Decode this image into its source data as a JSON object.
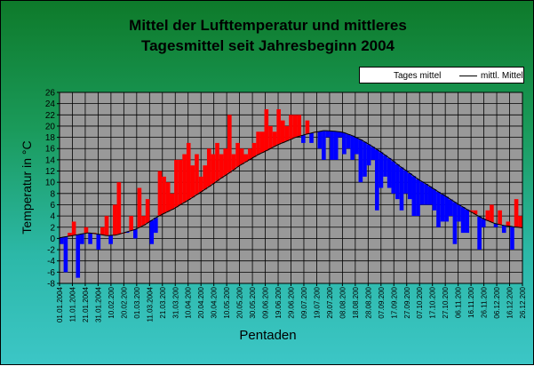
{
  "title_lines": [
    "Mittel der Lufttemperatur und mittleres",
    "Tagesmittel seit Jahresbeginn 2004"
  ],
  "legend": {
    "series1": "Tages mittel",
    "series2": "mittl. Mittel"
  },
  "colors": {
    "above": "#ff0000",
    "below": "#0000ff",
    "plot_bg": "#999999",
    "grid": "#000000",
    "mean_line": "#000000"
  },
  "chart_data": {
    "type": "area",
    "title": "Mittel der Lufttemperatur und mittleres Tagesmittel seit Jahresbeginn 2004",
    "xlabel": "Pentaden",
    "ylabel": "Temperatur in °C",
    "ylim": [
      -8,
      26
    ],
    "yticks": [
      -8,
      -6,
      -4,
      -2,
      0,
      2,
      4,
      6,
      8,
      10,
      12,
      14,
      16,
      18,
      20,
      22,
      24,
      26
    ],
    "grid": true,
    "legend_position": "top-right",
    "x_tick_labels": [
      "01.01.2004",
      "11.01.2004",
      "21.01.2004",
      "31.01.2004",
      "10.02.200",
      "20.02.200",
      "01.03.200",
      "11.03.2004",
      "21.03.200",
      "31.03.200",
      "10.04.200",
      "20.04.200",
      "30.04.200",
      "10.05.200",
      "20.05.200",
      "30.05.200",
      "09.06.200",
      "19.06.200",
      "29.06.200",
      "09.07.200",
      "19.07.200",
      "29.07.200",
      "08.08.200",
      "18.08.200",
      "28.08.200",
      "07.09.200",
      "17.09.200",
      "27.09.200",
      "07.10.200",
      "17.10.200",
      "27.10.200",
      "06.11.200",
      "16.11.200",
      "26.11.200",
      "06.12.200",
      "16.12.200",
      "26.12.200"
    ],
    "series": [
      {
        "name": "Tages mittel",
        "values": [
          -1,
          -6,
          1,
          3,
          -7,
          -1,
          2,
          -1,
          1,
          -2,
          2,
          4,
          -1,
          6,
          10,
          1,
          1,
          4,
          0,
          9,
          4,
          7,
          -1,
          1,
          12,
          11,
          10,
          8,
          14,
          14,
          15,
          17,
          13,
          15,
          11,
          13,
          16,
          15,
          17,
          15,
          16,
          22,
          15,
          17,
          16,
          15,
          16,
          17,
          19,
          19,
          23,
          20,
          19,
          23,
          21,
          20,
          22,
          22,
          22,
          17,
          21,
          17,
          19,
          16,
          14,
          18,
          14,
          14,
          18,
          15,
          16,
          14,
          15,
          10,
          11,
          13,
          14,
          5,
          9,
          11,
          9,
          8,
          7,
          5,
          8,
          7,
          4,
          4,
          6,
          6,
          6,
          5,
          2,
          3,
          3,
          4,
          -1,
          3,
          1,
          1,
          5,
          5,
          -2,
          2,
          5,
          6,
          2,
          5,
          1,
          3,
          -2,
          7,
          4
        ]
      },
      {
        "name": "mittl. Mittel",
        "values": [
          0.1,
          0.4,
          0.7,
          1,
          0.8,
          0.5,
          0.6,
          1.1,
          1.6,
          2.4,
          3.5,
          4.4,
          5.2,
          6.2,
          7.2,
          8.3,
          9.4,
          10.6,
          11.7,
          12.9,
          13.9,
          14.9,
          15.7,
          16.6,
          17.3,
          18,
          18.5,
          18.9,
          19.2,
          19.1,
          18.9,
          18.3,
          17.5,
          16.5,
          15.4,
          14.2,
          12.9,
          11.7,
          10.5,
          9.5,
          8.4,
          7.4,
          6.3,
          5.3,
          4.3,
          3.4,
          2.7,
          2.3,
          2.1,
          1.9
        ]
      }
    ]
  }
}
